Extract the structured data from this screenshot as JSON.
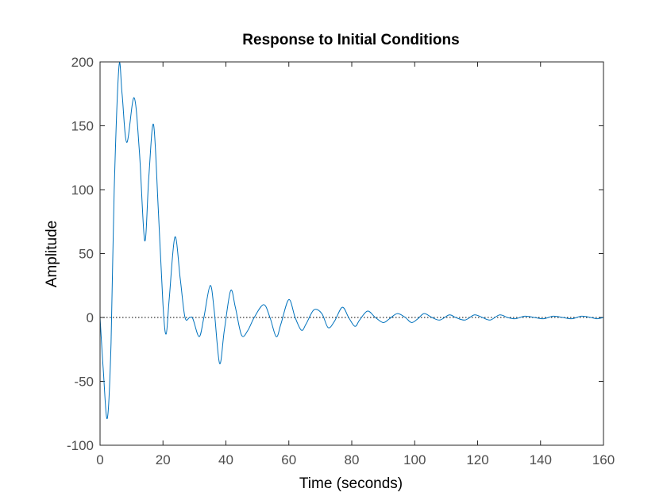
{
  "chart_data": {
    "type": "line",
    "title": "Response to Initial Conditions",
    "xlabel": "Time (seconds)",
    "ylabel": "Amplitude",
    "xlim": [
      0,
      160
    ],
    "ylim": [
      -100,
      200
    ],
    "xticks": [
      "0",
      "20",
      "40",
      "60",
      "80",
      "100",
      "120",
      "140",
      "160"
    ],
    "yticks": [
      "-100",
      "-50",
      "0",
      "50",
      "100",
      "150",
      "200"
    ],
    "grid": false,
    "legend": "none",
    "reference_line": {
      "y": 0,
      "style": "dotted",
      "color": "#000000"
    },
    "series": [
      {
        "color": "#0072bd",
        "points": [
          [
            0,
            0
          ],
          [
            1,
            -40
          ],
          [
            2.3,
            -79
          ],
          [
            3.5,
            -20
          ],
          [
            4.5,
            100
          ],
          [
            6,
            196
          ],
          [
            7,
            175
          ],
          [
            8.5,
            137
          ],
          [
            10.8,
            172
          ],
          [
            12.5,
            130
          ],
          [
            14.2,
            60
          ],
          [
            15.5,
            110
          ],
          [
            17,
            151
          ],
          [
            18.5,
            85
          ],
          [
            20,
            10
          ],
          [
            21,
            -13
          ],
          [
            22,
            15
          ],
          [
            23.8,
            63
          ],
          [
            25.5,
            30
          ],
          [
            27,
            0
          ],
          [
            28.5,
            0
          ],
          [
            29.5,
            -1
          ],
          [
            31.5,
            -15
          ],
          [
            33,
            0
          ],
          [
            35,
            25
          ],
          [
            36.3,
            5
          ],
          [
            38,
            -36
          ],
          [
            39.5,
            -10
          ],
          [
            41.5,
            21
          ],
          [
            43,
            8
          ],
          [
            45,
            -14
          ],
          [
            47,
            -10
          ],
          [
            49,
            0
          ],
          [
            52,
            10
          ],
          [
            54,
            0
          ],
          [
            56,
            -15
          ],
          [
            57.5,
            -5
          ],
          [
            60,
            14
          ],
          [
            62,
            0
          ],
          [
            64,
            -10
          ],
          [
            65.5,
            -5
          ],
          [
            68,
            6
          ],
          [
            70.5,
            3
          ],
          [
            72.5,
            -8
          ],
          [
            74.5,
            -3
          ],
          [
            77,
            8
          ],
          [
            79,
            0
          ],
          [
            81,
            -7
          ],
          [
            82.5,
            -2
          ],
          [
            85,
            5
          ],
          [
            87.5,
            0
          ],
          [
            90,
            -4
          ],
          [
            92,
            -1
          ],
          [
            94.5,
            3
          ],
          [
            97,
            0
          ],
          [
            99,
            -4
          ],
          [
            101,
            -1
          ],
          [
            103,
            3
          ],
          [
            105.5,
            0
          ],
          [
            108,
            -2
          ],
          [
            111,
            2
          ],
          [
            113,
            0
          ],
          [
            116,
            -2
          ],
          [
            119,
            2
          ],
          [
            121.5,
            0
          ],
          [
            124,
            -2
          ],
          [
            127,
            2
          ],
          [
            129.5,
            0
          ],
          [
            132,
            -1
          ],
          [
            135,
            1
          ],
          [
            138,
            0
          ],
          [
            141,
            -1
          ],
          [
            144,
            1
          ],
          [
            147,
            0
          ],
          [
            150,
            -1
          ],
          [
            153,
            1
          ],
          [
            156,
            0
          ],
          [
            158,
            -1
          ],
          [
            160,
            0
          ]
        ]
      }
    ]
  }
}
